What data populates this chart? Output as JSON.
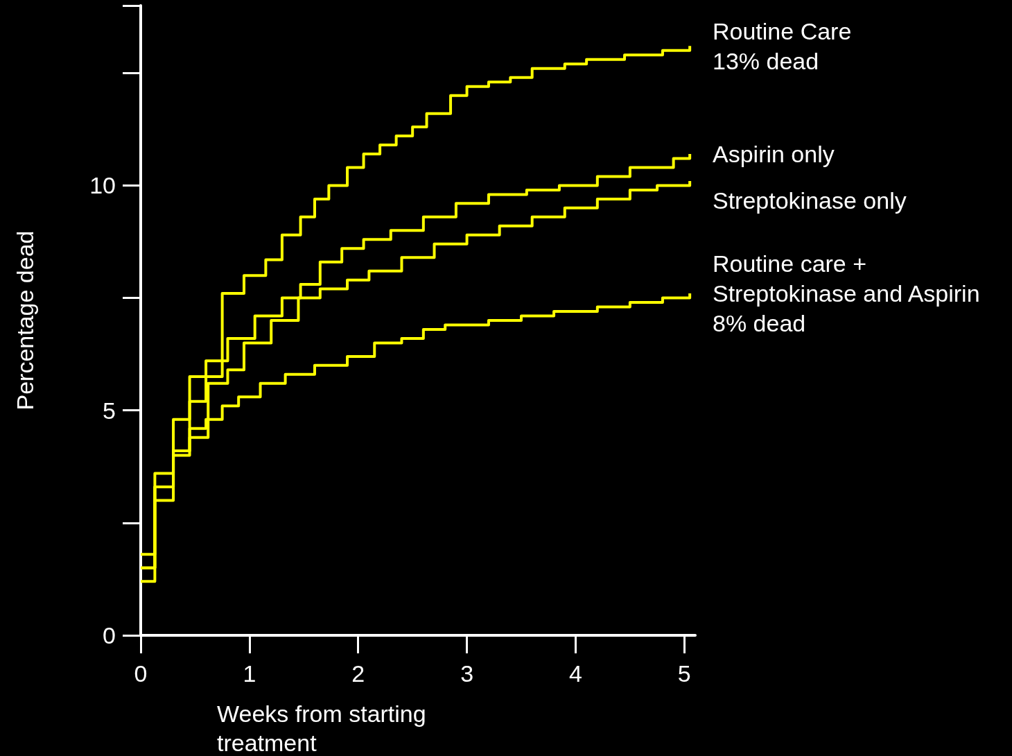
{
  "chart_data": {
    "type": "step",
    "xlabel": "Weeks from starting\ntreatment",
    "ylabel": "Percentage dead",
    "xlim": [
      0,
      5.1
    ],
    "ylim": [
      0,
      14
    ],
    "xticks": [
      0,
      1,
      2,
      3,
      4,
      5
    ],
    "yticks": [
      0,
      5,
      10
    ],
    "grid": false,
    "legend": false,
    "marker": "none",
    "line_style": "solid",
    "series": [
      {
        "name": "Routine Care\n13% dead",
        "color": "#ffff00",
        "x": [
          0,
          0.13,
          0.3,
          0.45,
          0.75,
          0.95,
          1.15,
          1.3,
          1.47,
          1.6,
          1.73,
          1.9,
          2.05,
          2.2,
          2.35,
          2.5,
          2.63,
          2.85,
          3.0,
          3.2,
          3.4,
          3.6,
          3.9,
          4.1,
          4.45,
          4.8,
          5.05
        ],
        "values": [
          1.5,
          3.6,
          4.8,
          5.75,
          7.6,
          8.0,
          8.35,
          8.9,
          9.3,
          9.7,
          10.0,
          10.4,
          10.7,
          10.9,
          11.1,
          11.3,
          11.6,
          12.0,
          12.2,
          12.3,
          12.4,
          12.6,
          12.7,
          12.8,
          12.9,
          13.0,
          13.1
        ]
      },
      {
        "name": "Aspirin only",
        "color": "#ffff00",
        "x": [
          0,
          0.13,
          0.3,
          0.45,
          0.6,
          0.8,
          1.05,
          1.3,
          1.47,
          1.65,
          1.85,
          2.05,
          2.3,
          2.6,
          2.9,
          3.2,
          3.55,
          3.85,
          4.2,
          4.5,
          4.9,
          5.05
        ],
        "values": [
          1.5,
          3.3,
          4.1,
          5.2,
          6.1,
          6.6,
          7.1,
          7.5,
          7.8,
          8.3,
          8.6,
          8.8,
          9.0,
          9.3,
          9.6,
          9.8,
          9.9,
          10.0,
          10.2,
          10.4,
          10.6,
          10.7
        ]
      },
      {
        "name": "Streptokinase only",
        "color": "#ffff00",
        "x": [
          0,
          0.13,
          0.3,
          0.45,
          0.62,
          0.8,
          0.95,
          1.2,
          1.45,
          1.65,
          1.9,
          2.1,
          2.4,
          2.7,
          3.0,
          3.3,
          3.6,
          3.9,
          4.2,
          4.5,
          4.75,
          5.05
        ],
        "values": [
          1.2,
          3.0,
          4.0,
          4.4,
          5.6,
          5.9,
          6.5,
          7.0,
          7.5,
          7.7,
          7.9,
          8.1,
          8.4,
          8.7,
          8.9,
          9.1,
          9.3,
          9.5,
          9.7,
          9.9,
          10.0,
          10.1
        ]
      },
      {
        "name": "Routine care +\nStreptokinase and Aspirin\n8% dead",
        "color": "#ffff00",
        "x": [
          0,
          0.13,
          0.3,
          0.45,
          0.6,
          0.75,
          0.9,
          1.1,
          1.33,
          1.6,
          1.9,
          2.15,
          2.4,
          2.6,
          2.8,
          3.2,
          3.5,
          3.8,
          4.2,
          4.5,
          4.8,
          5.05
        ],
        "values": [
          1.8,
          3.3,
          4.1,
          4.6,
          4.8,
          5.1,
          5.3,
          5.6,
          5.8,
          6.0,
          6.2,
          6.5,
          6.6,
          6.8,
          6.9,
          7.0,
          7.1,
          7.2,
          7.3,
          7.4,
          7.5,
          7.6
        ]
      }
    ]
  }
}
